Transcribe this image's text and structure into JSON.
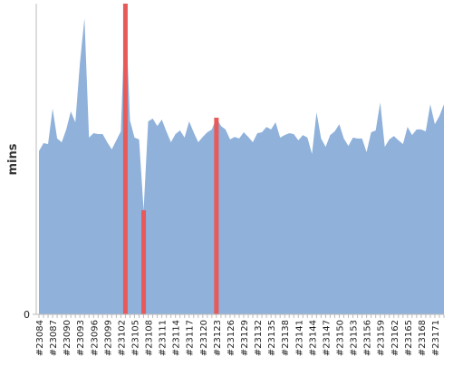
{
  "chart_data": {
    "type": "area",
    "y_label": "mins",
    "categories": [
      "#23084",
      null,
      null,
      "#23087",
      null,
      null,
      "#23090",
      null,
      null,
      "#23093",
      null,
      null,
      "#23096",
      null,
      null,
      "#23099",
      null,
      null,
      "#23102",
      null,
      null,
      "#23105",
      null,
      null,
      "#23108",
      null,
      null,
      "#23111",
      null,
      null,
      "#23114",
      null,
      null,
      "#23117",
      null,
      null,
      "#23120",
      null,
      null,
      "#23123",
      null,
      null,
      "#23126",
      null,
      null,
      "#23129",
      null,
      null,
      "#23132",
      null,
      null,
      "#23135",
      null,
      null,
      "#23138",
      null,
      null,
      "#23141",
      null,
      null,
      "#23144",
      null,
      null,
      "#23147",
      null,
      null,
      "#23150",
      null,
      null,
      "#23153",
      null,
      null,
      "#23156",
      null,
      null,
      "#23159",
      null,
      null,
      "#23162",
      null,
      null,
      "#23165",
      null,
      null,
      "#23168",
      null,
      null,
      "#23171",
      null,
      null
    ],
    "series": [
      {
        "type": "area",
        "color": "#8fb1da",
        "values": [
          52.5,
          55.1,
          54.8,
          66.2,
          56.6,
          55.4,
          59.5,
          65.3,
          61.8,
          80.8,
          95.3,
          56.9,
          58.3,
          58.0,
          58.0,
          55.4,
          53.1,
          56.0,
          58.9,
          100,
          62.4,
          56.9,
          56.3,
          33.5,
          62.1,
          63.0,
          60.6,
          62.7,
          58.9,
          55.4,
          58.0,
          59.2,
          56.9,
          62.1,
          58.6,
          55.4,
          57.1,
          58.6,
          59.5,
          63.3,
          60.6,
          59.5,
          56.3,
          57.1,
          56.6,
          58.6,
          57.1,
          55.4,
          58.3,
          58.6,
          60.3,
          59.5,
          61.8,
          56.9,
          57.7,
          58.3,
          58.0,
          56.0,
          57.7,
          56.9,
          51.6,
          65.0,
          56.6,
          53.9,
          57.7,
          58.9,
          61.2,
          56.6,
          54.2,
          56.9,
          56.6,
          56.6,
          52.2,
          58.6,
          59.2,
          68.2,
          53.9,
          56.3,
          57.4,
          56.0,
          54.8,
          60.3,
          57.7,
          59.5,
          59.5,
          58.9,
          67.6,
          61.2,
          63.8,
          67.6
        ]
      },
      {
        "type": "bar",
        "color": "#e85a5a",
        "values": [
          null,
          null,
          null,
          null,
          null,
          null,
          null,
          null,
          null,
          null,
          null,
          null,
          null,
          null,
          null,
          null,
          null,
          null,
          null,
          100,
          null,
          null,
          null,
          33.5,
          null,
          null,
          null,
          null,
          null,
          null,
          null,
          null,
          null,
          null,
          null,
          null,
          null,
          null,
          null,
          63.3,
          null,
          null,
          null,
          null,
          null,
          null,
          null,
          null,
          null,
          null,
          null,
          null,
          null,
          null,
          null,
          null,
          null,
          null,
          null,
          null,
          null,
          null,
          null,
          null,
          null,
          null,
          null,
          null,
          null,
          null,
          null,
          null,
          null,
          null,
          null,
          null,
          null,
          null,
          null,
          null,
          null,
          null,
          null,
          null,
          null,
          null,
          null,
          null,
          null,
          null
        ]
      }
    ],
    "ylim": [
      0,
      100
    ],
    "yticks": [
      0
    ]
  }
}
